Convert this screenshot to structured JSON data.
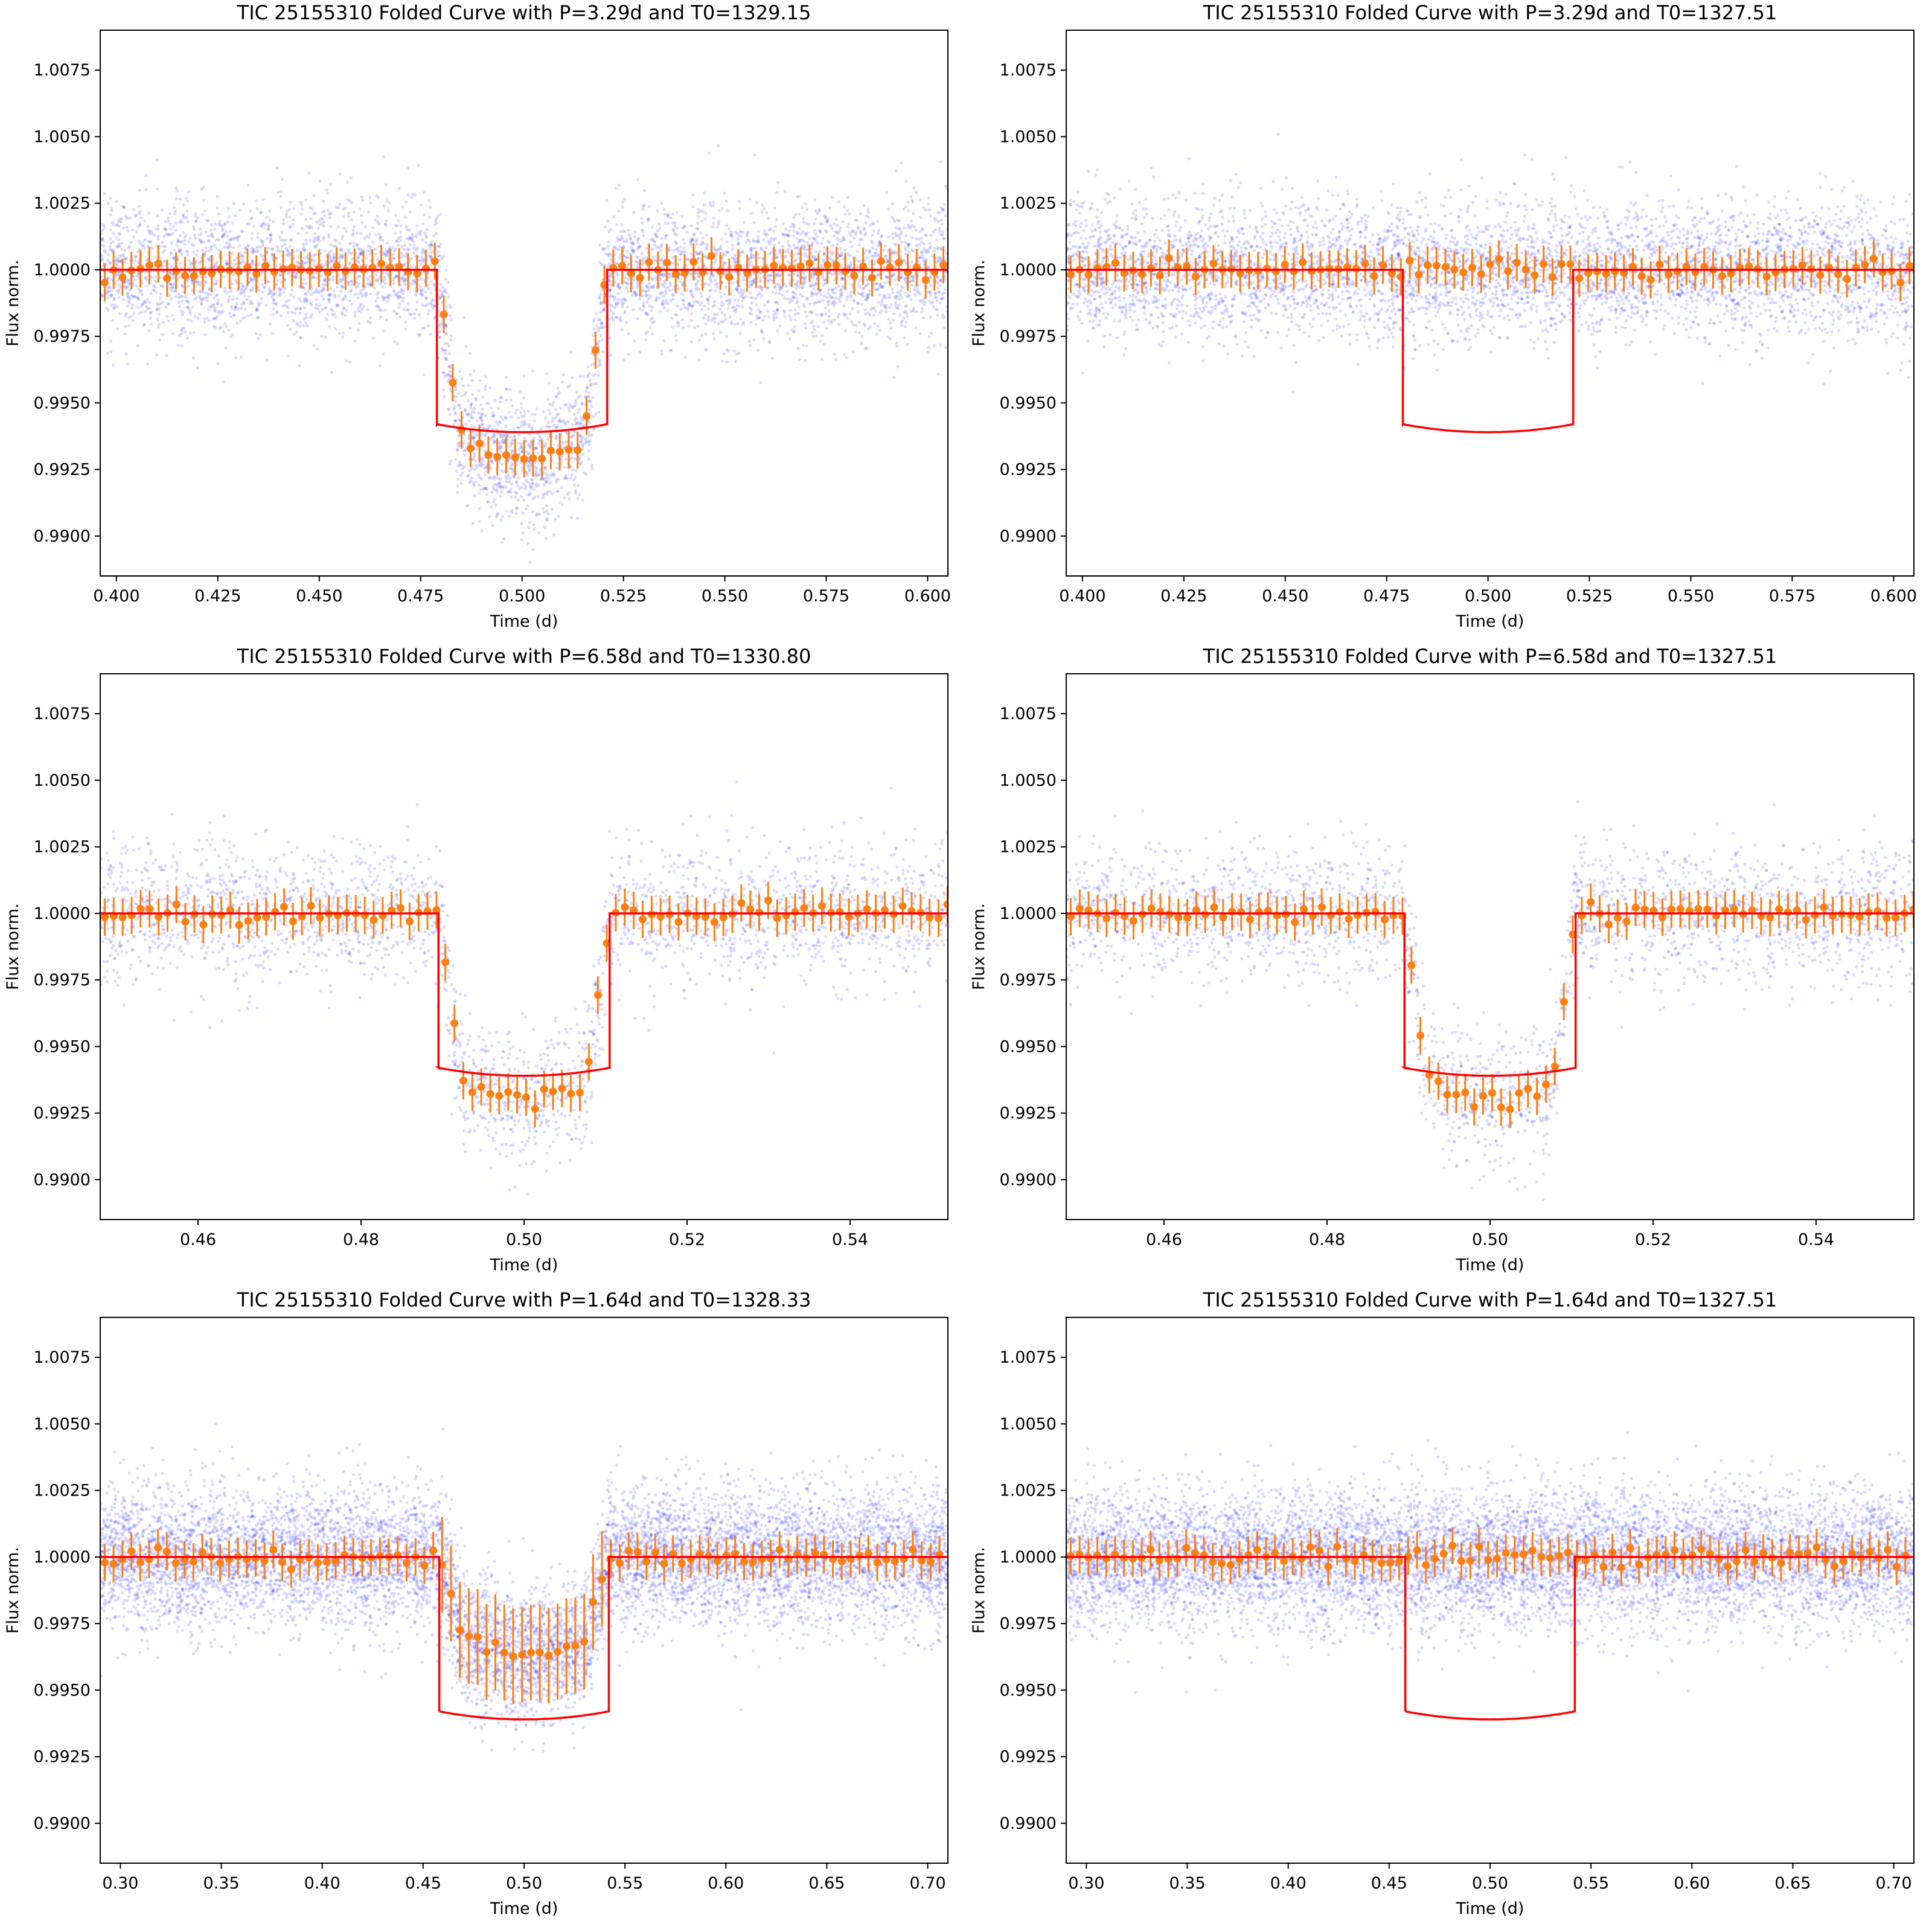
{
  "figure": {
    "colors": {
      "raw_points": "#0000ff",
      "binned_points": "#ff7f0e",
      "model": "#ff0000",
      "frame": "#000000"
    }
  },
  "chart_data": [
    {
      "type": "scatter",
      "title": "TIC 25155310 Folded Curve with P=3.29d and T0=1329.15",
      "xlabel": "Time (d)",
      "ylabel": "Flux norm.",
      "xlim": [
        0.396,
        0.605
      ],
      "ylim": [
        0.9885,
        1.009
      ],
      "xticks": [
        "0.400",
        "0.425",
        "0.450",
        "0.475",
        "0.500",
        "0.525",
        "0.550",
        "0.575",
        "0.600"
      ],
      "xtick_values": [
        0.4,
        0.425,
        0.45,
        0.475,
        0.5,
        0.525,
        0.55,
        0.575,
        0.6
      ],
      "yticks": [
        "0.9900",
        "0.9925",
        "0.9950",
        "0.9975",
        "1.0000",
        "1.0025",
        "1.0050",
        "1.0075"
      ],
      "ytick_values": [
        0.99,
        0.9925,
        0.995,
        0.9975,
        1.0,
        1.0025,
        1.005,
        1.0075
      ],
      "grid": false,
      "series": [
        {
          "kind": "raw",
          "points": 5200,
          "scatter_sigma": 0.0013
        },
        {
          "kind": "binned",
          "bin_width": 0.0022,
          "error": 0.0007
        },
        {
          "kind": "model",
          "ingress": 0.479,
          "egress": 0.521,
          "edge_depth": 0.9942,
          "center_depth": 0.9939
        }
      ],
      "transit": {
        "present": true,
        "start": 0.479,
        "end": 0.521,
        "depth_center": 0.9929,
        "edge_level": 0.9945
      }
    },
    {
      "type": "scatter",
      "title": "TIC 25155310 Folded Curve with P=3.29d and T0=1327.51",
      "xlabel": "Time (d)",
      "ylabel": "Flux norm.",
      "xlim": [
        0.396,
        0.605
      ],
      "ylim": [
        0.9885,
        1.009
      ],
      "xticks": [
        "0.400",
        "0.425",
        "0.450",
        "0.475",
        "0.500",
        "0.525",
        "0.550",
        "0.575",
        "0.600"
      ],
      "xtick_values": [
        0.4,
        0.425,
        0.45,
        0.475,
        0.5,
        0.525,
        0.55,
        0.575,
        0.6
      ],
      "yticks": [
        "0.9900",
        "0.9925",
        "0.9950",
        "0.9975",
        "1.0000",
        "1.0025",
        "1.0050",
        "1.0075"
      ],
      "ytick_values": [
        0.99,
        0.9925,
        0.995,
        0.9975,
        1.0,
        1.0025,
        1.005,
        1.0075
      ],
      "grid": false,
      "series": [
        {
          "kind": "raw",
          "points": 5200,
          "scatter_sigma": 0.0013
        },
        {
          "kind": "binned",
          "bin_width": 0.0022,
          "error": 0.0007
        },
        {
          "kind": "model",
          "ingress": 0.479,
          "egress": 0.521,
          "edge_depth": 0.9942,
          "center_depth": 0.9939
        }
      ],
      "transit": {
        "present": false
      }
    },
    {
      "type": "scatter",
      "title": "TIC 25155310 Folded Curve with P=6.58d and T0=1330.80",
      "xlabel": "Time (d)",
      "ylabel": "Flux norm.",
      "xlim": [
        0.448,
        0.552
      ],
      "ylim": [
        0.9885,
        1.009
      ],
      "xticks": [
        "0.46",
        "0.48",
        "0.50",
        "0.52",
        "0.54"
      ],
      "xtick_values": [
        0.46,
        0.48,
        0.5,
        0.52,
        0.54
      ],
      "yticks": [
        "0.9900",
        "0.9925",
        "0.9950",
        "0.9975",
        "1.0000",
        "1.0025",
        "1.0050",
        "1.0075"
      ],
      "ytick_values": [
        0.99,
        0.9925,
        0.995,
        0.9975,
        1.0,
        1.0025,
        1.005,
        1.0075
      ],
      "grid": false,
      "series": [
        {
          "kind": "raw",
          "points": 2700,
          "scatter_sigma": 0.0013
        },
        {
          "kind": "binned",
          "bin_width": 0.0011,
          "error": 0.0007
        },
        {
          "kind": "model",
          "ingress": 0.4895,
          "egress": 0.5105,
          "edge_depth": 0.9942,
          "center_depth": 0.9939
        }
      ],
      "transit": {
        "present": true,
        "start": 0.4895,
        "end": 0.5105,
        "depth_center": 0.993,
        "edge_level": 0.9945
      }
    },
    {
      "type": "scatter",
      "title": "TIC 25155310 Folded Curve with P=6.58d and T0=1327.51",
      "xlabel": "Time (d)",
      "ylabel": "Flux norm.",
      "xlim": [
        0.448,
        0.552
      ],
      "ylim": [
        0.9885,
        1.009
      ],
      "xticks": [
        "0.46",
        "0.48",
        "0.50",
        "0.52",
        "0.54"
      ],
      "xtick_values": [
        0.46,
        0.48,
        0.5,
        0.52,
        0.54
      ],
      "yticks": [
        "0.9900",
        "0.9925",
        "0.9950",
        "0.9975",
        "1.0000",
        "1.0025",
        "1.0050",
        "1.0075"
      ],
      "ytick_values": [
        0.99,
        0.9925,
        0.995,
        0.9975,
        1.0,
        1.0025,
        1.005,
        1.0075
      ],
      "grid": false,
      "series": [
        {
          "kind": "raw",
          "points": 2700,
          "scatter_sigma": 0.0013
        },
        {
          "kind": "binned",
          "bin_width": 0.0011,
          "error": 0.0007
        },
        {
          "kind": "model",
          "ingress": 0.4895,
          "egress": 0.5105,
          "edge_depth": 0.9942,
          "center_depth": 0.9939
        }
      ],
      "transit": {
        "present": true,
        "start": 0.4895,
        "end": 0.5105,
        "depth_center": 0.9929,
        "edge_level": 0.9945
      }
    },
    {
      "type": "scatter",
      "title": "TIC 25155310 Folded Curve with P=1.64d and T0=1328.33",
      "xlabel": "Time (d)",
      "ylabel": "Flux norm.",
      "xlim": [
        0.29,
        0.71
      ],
      "ylim": [
        0.9885,
        1.009
      ],
      "xticks": [
        "0.30",
        "0.35",
        "0.40",
        "0.45",
        "0.50",
        "0.55",
        "0.60",
        "0.65",
        "0.70"
      ],
      "xtick_values": [
        0.3,
        0.35,
        0.4,
        0.45,
        0.5,
        0.55,
        0.6,
        0.65,
        0.7
      ],
      "yticks": [
        "0.9900",
        "0.9925",
        "0.9950",
        "0.9975",
        "1.0000",
        "1.0025",
        "1.0050",
        "1.0075"
      ],
      "ytick_values": [
        0.99,
        0.9925,
        0.995,
        0.9975,
        1.0,
        1.0025,
        1.005,
        1.0075
      ],
      "grid": false,
      "series": [
        {
          "kind": "raw",
          "points": 9000,
          "scatter_sigma": 0.0013
        },
        {
          "kind": "binned",
          "bin_width": 0.0044,
          "error": 0.0007,
          "transit_error": 0.0018
        },
        {
          "kind": "model",
          "ingress": 0.458,
          "egress": 0.542,
          "edge_depth": 0.9942,
          "center_depth": 0.9939
        }
      ],
      "transit": {
        "present": true,
        "diluted": true,
        "start": 0.458,
        "end": 0.542,
        "depth_center": 0.9963,
        "edge_level": 0.9975
      }
    },
    {
      "type": "scatter",
      "title": "TIC 25155310 Folded Curve with P=1.64d and T0=1327.51",
      "xlabel": "Time (d)",
      "ylabel": "Flux norm.",
      "xlim": [
        0.29,
        0.71
      ],
      "ylim": [
        0.9885,
        1.009
      ],
      "xticks": [
        "0.30",
        "0.35",
        "0.40",
        "0.45",
        "0.50",
        "0.55",
        "0.60",
        "0.65",
        "0.70"
      ],
      "xtick_values": [
        0.3,
        0.35,
        0.4,
        0.45,
        0.5,
        0.55,
        0.6,
        0.65,
        0.7
      ],
      "yticks": [
        "0.9900",
        "0.9925",
        "0.9950",
        "0.9975",
        "1.0000",
        "1.0025",
        "1.0050",
        "1.0075"
      ],
      "ytick_values": [
        0.99,
        0.9925,
        0.995,
        0.9975,
        1.0,
        1.0025,
        1.005,
        1.0075
      ],
      "grid": false,
      "series": [
        {
          "kind": "raw",
          "points": 9000,
          "scatter_sigma": 0.0013
        },
        {
          "kind": "binned",
          "bin_width": 0.0044,
          "error": 0.0007
        },
        {
          "kind": "model",
          "ingress": 0.458,
          "egress": 0.542,
          "edge_depth": 0.9942,
          "center_depth": 0.9939
        }
      ],
      "transit": {
        "present": false
      }
    }
  ]
}
